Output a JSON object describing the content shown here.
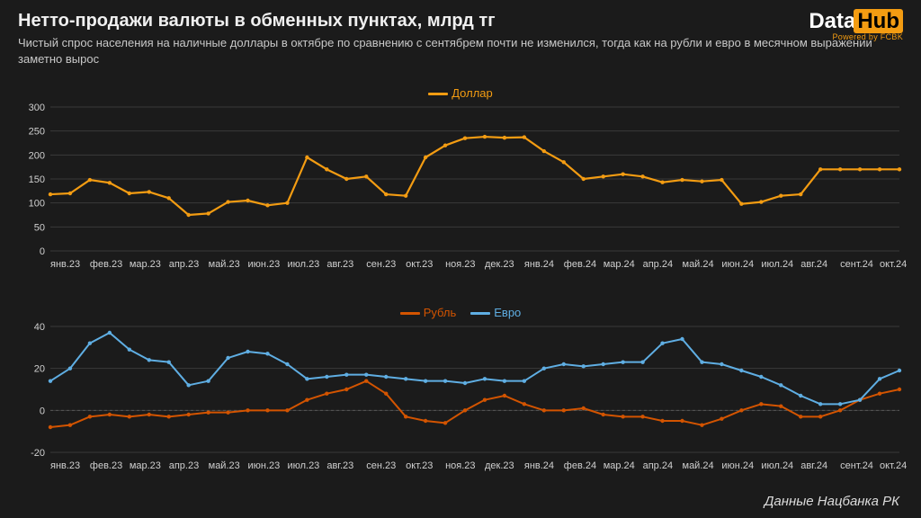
{
  "header": {
    "title": "Нетто-продажи валюты в обменных пунктах, млрд тг",
    "subtitle": "Чистый спрос населения на наличные доллары в октябре по сравнению с сентябрем почти не изменился, тогда как на рубли и евро в месячном выражении заметно вырос"
  },
  "logo": {
    "part1": "Data",
    "part2": "Hub",
    "sub": "Powered by FCBK"
  },
  "source": "Данные Нацбанка РК",
  "colors": {
    "bg": "#1b1b1b",
    "grid": "#3a3a3a",
    "text": "#e8e8e8",
    "dollar": "#f39c12",
    "ruble": "#d35400",
    "euro": "#5faee3"
  },
  "x_labels": [
    "янв.23",
    "фев.23",
    "мар.23",
    "апр.23",
    "май.23",
    "июн.23",
    "июл.23",
    "авг.23",
    "сен.23",
    "окт.23",
    "ноя.23",
    "дек.23",
    "янв.24",
    "фев.24",
    "мар.24",
    "апр.24",
    "май.24",
    "июн.24",
    "июл.24",
    "авг.24",
    "сент.24",
    "окт.24"
  ],
  "chart1": {
    "name": "dollar-chart",
    "legend": [
      {
        "color": "#f39c12",
        "label": "Доллар"
      }
    ],
    "ylim": [
      0,
      300
    ],
    "ytick_step": 50,
    "line_color": "#f39c12",
    "line_width": 2.2,
    "points_per_label": 2,
    "series": {
      "dollar": [
        118,
        120,
        148,
        142,
        120,
        123,
        110,
        75,
        78,
        102,
        105,
        95,
        100,
        195,
        170,
        150,
        155,
        118,
        115,
        195,
        220,
        235,
        238,
        236,
        237,
        208,
        185,
        150,
        155,
        160,
        155,
        143,
        148,
        145,
        148,
        98,
        102,
        115,
        118,
        170,
        170,
        170,
        170,
        170
      ]
    }
  },
  "chart2": {
    "name": "ruble-euro-chart",
    "legend": [
      {
        "color": "#d35400",
        "label": "Рубль"
      },
      {
        "color": "#5faee3",
        "label": "Евро"
      }
    ],
    "ylim": [
      -20,
      40
    ],
    "yticks": [
      -20,
      0,
      20,
      40
    ],
    "points_per_label": 2,
    "series": {
      "ruble": {
        "color": "#d35400",
        "width": 2,
        "values": [
          -8,
          -7,
          -3,
          -2,
          -3,
          -2,
          -3,
          -2,
          -1,
          -1,
          0,
          0,
          0,
          5,
          8,
          10,
          14,
          8,
          -3,
          -5,
          -6,
          0,
          5,
          7,
          3,
          0,
          0,
          1,
          -2,
          -3,
          -3,
          -5,
          -5,
          -7,
          -4,
          0,
          3,
          2,
          -3,
          -3,
          0,
          5,
          8,
          10
        ]
      },
      "euro": {
        "color": "#5faee3",
        "width": 2,
        "values": [
          14,
          20,
          32,
          37,
          29,
          24,
          23,
          12,
          14,
          25,
          28,
          27,
          22,
          15,
          16,
          17,
          17,
          16,
          15,
          14,
          14,
          13,
          15,
          14,
          14,
          20,
          22,
          21,
          22,
          23,
          23,
          32,
          34,
          23,
          22,
          19,
          16,
          12,
          7,
          3,
          3,
          5,
          15,
          19
        ]
      }
    }
  }
}
